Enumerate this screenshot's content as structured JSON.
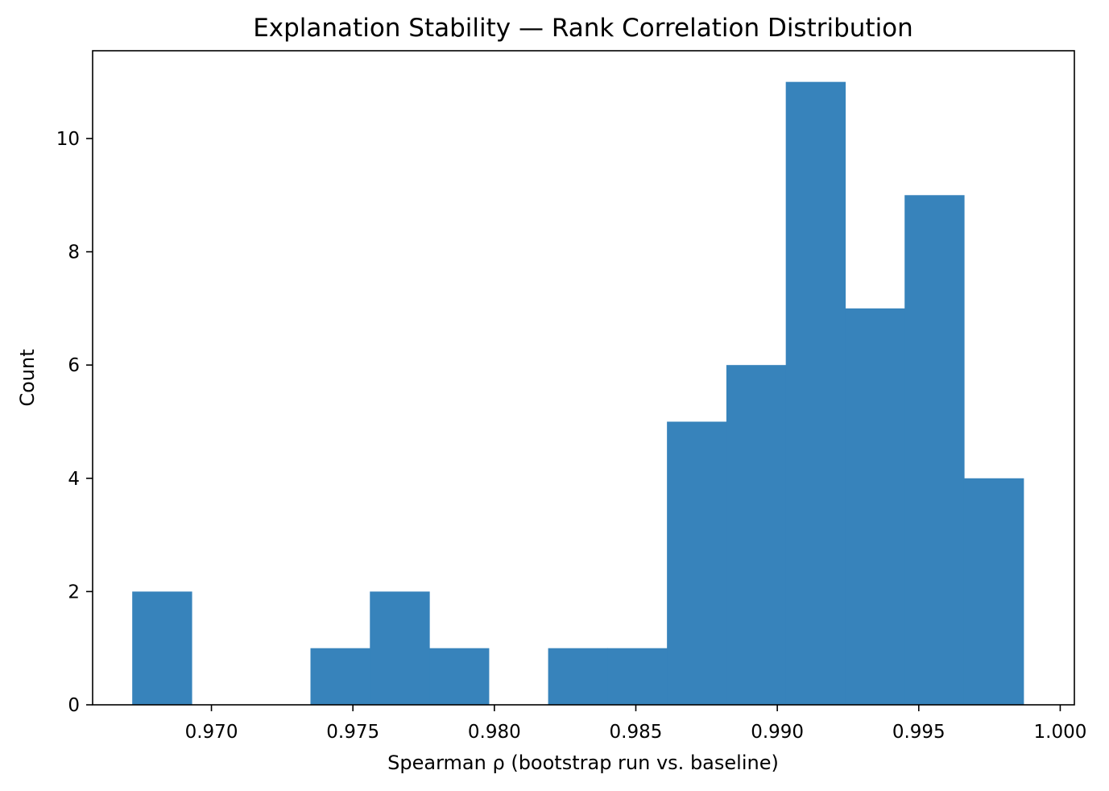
{
  "chart_data": {
    "type": "histogram",
    "title": "Explanation Stability — Rank Correlation Distribution",
    "xlabel": "Spearman ρ (bootstrap run vs. baseline)",
    "ylabel": "Count",
    "xlim": [
      0.9658,
      1.0005
    ],
    "ylim": [
      0,
      11.55
    ],
    "bin_start": 0.9672,
    "bin_width": 0.0021,
    "counts": [
      2,
      0,
      0,
      1,
      2,
      1,
      0,
      1,
      1,
      5,
      6,
      11,
      7,
      9,
      4
    ],
    "x_ticks": [
      "0.970",
      "0.975",
      "0.980",
      "0.985",
      "0.990",
      "0.995",
      "1.000"
    ],
    "x_tick_values": [
      0.97,
      0.975,
      0.98,
      0.985,
      0.99,
      0.995,
      1.0
    ],
    "y_ticks": [
      "0",
      "2",
      "4",
      "6",
      "8",
      "10"
    ],
    "y_tick_values": [
      0,
      2,
      4,
      6,
      8,
      10
    ],
    "bar_color": "#3783bb",
    "grid": false
  }
}
